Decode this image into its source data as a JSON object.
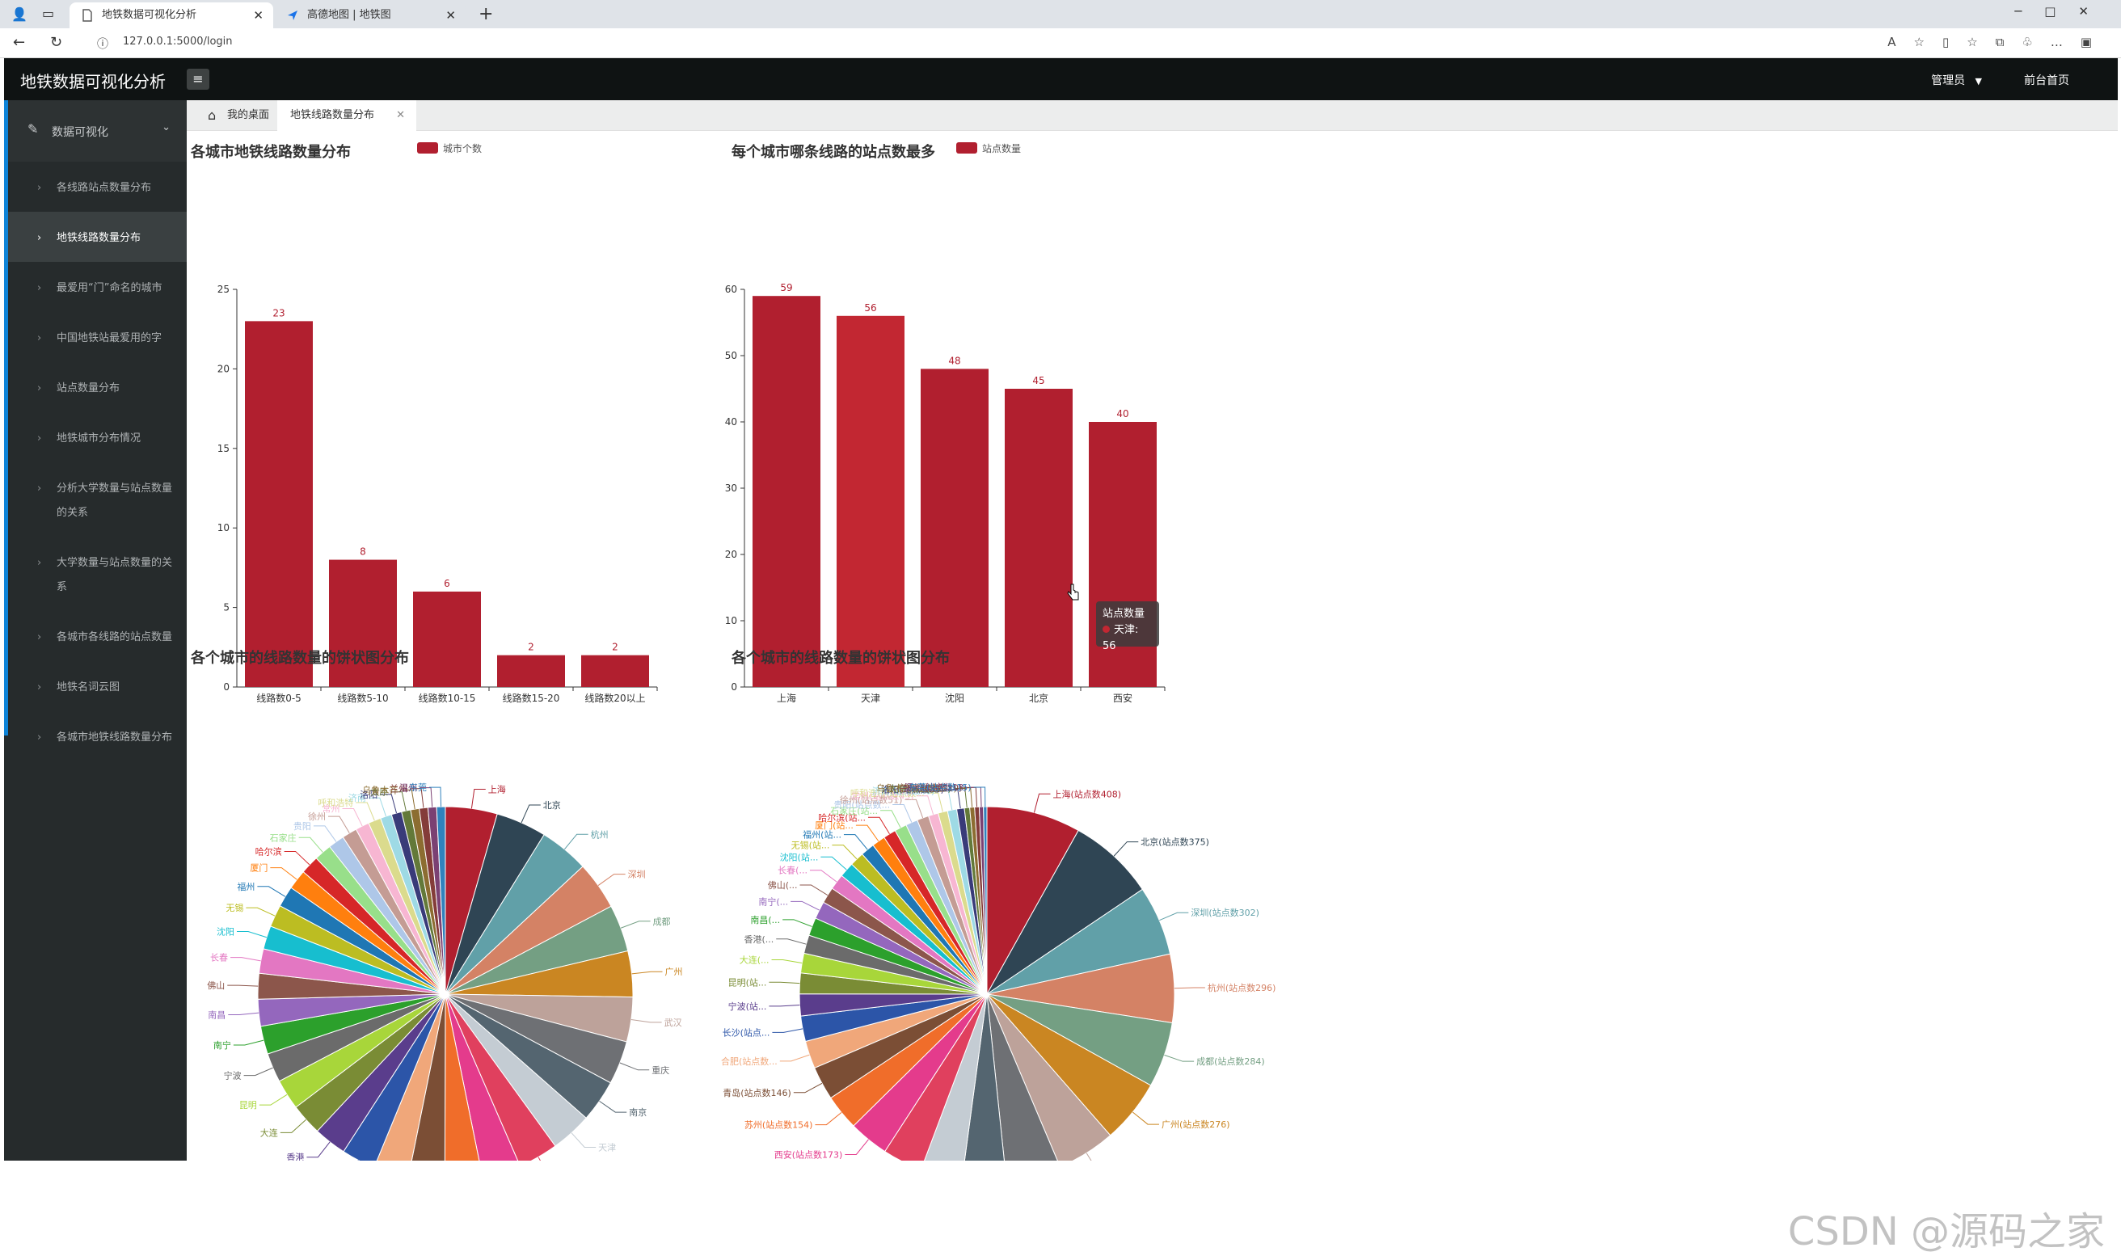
{
  "browser": {
    "tabs": [
      {
        "title": "地铁数据可视化分析"
      },
      {
        "title": "高德地图 | 地铁图"
      }
    ],
    "url": "127.0.0.1:5000/login"
  },
  "app": {
    "title": "地铁数据可视化分析",
    "admin_label": "管理员",
    "frontpage_label": "前台首页"
  },
  "sidebar": {
    "section_label": "数据可视化",
    "items": [
      {
        "label": "各线路站点数量分布"
      },
      {
        "label": "地铁线路数量分布"
      },
      {
        "label": "最爱用“门”命名的城市"
      },
      {
        "label": "中国地铁站最爱用的字"
      },
      {
        "label": "站点数量分布"
      },
      {
        "label": "地铁城市分布情况"
      },
      {
        "label": "分析大学数量与站点数量的关系"
      },
      {
        "label": "大学数量与站点数量的关系"
      },
      {
        "label": "各城市各线路的站点数量"
      },
      {
        "label": "地铁名词云图"
      },
      {
        "label": "各城市地铁线路数量分布"
      }
    ]
  },
  "page_tabs": {
    "home": "我的桌面",
    "current": "地铁线路数量分布"
  },
  "tooltip": {
    "title": "站点数量",
    "value": "天津: 56"
  },
  "watermark": "CSDN @源码之家",
  "chart_data": [
    {
      "type": "bar",
      "title": "各城市地铁线路数量分布",
      "legend": "城市个数",
      "categories": [
        "线路数0-5",
        "线路数5-10",
        "线路数10-15",
        "线路数15-20",
        "线路数20以上"
      ],
      "values": [
        23,
        8,
        6,
        2,
        2
      ],
      "ylim": [
        0,
        25
      ],
      "yticks": [
        0,
        5,
        10,
        15,
        20,
        25
      ],
      "color": "#b11f2f"
    },
    {
      "type": "bar",
      "title": "每个城市哪条线路的站点数最多",
      "legend": "站点数量",
      "categories": [
        "上海",
        "天津",
        "沈阳",
        "北京",
        "西安"
      ],
      "values": [
        59,
        56,
        48,
        45,
        40
      ],
      "ylim": [
        0,
        60
      ],
      "yticks": [
        0,
        10,
        20,
        30,
        40,
        50,
        60
      ],
      "color": "#b11f2f",
      "highlight_color": "#c22732",
      "highlighted": "天津"
    },
    {
      "type": "pie",
      "title": "各个城市的线路数量的饼状图分布",
      "labels": [
        "上海",
        "北京",
        "杭州",
        "深圳",
        "成都",
        "广州",
        "武汉",
        "重庆",
        "南京",
        "天津",
        "郑州",
        "西安",
        "苏州",
        "青岛",
        "长沙",
        "合肥",
        "香港",
        "大连",
        "昆明",
        "宁波",
        "南宁",
        "南昌",
        "佛山",
        "长春",
        "沈阳",
        "无锡",
        "福州",
        "厦门",
        "哈尔滨",
        "石家庄",
        "贵阳",
        "徐州",
        "常州",
        "呼和浩特",
        "济南",
        "洛阳",
        "太原",
        "乌鲁木齐",
        "兰州",
        "温州",
        "东莞"
      ]
    },
    {
      "type": "pie",
      "title": "各个城市的线路数量的饼状图分布",
      "labels": [
        "上海(站点数408)",
        "北京(站点数375)",
        "深圳(站点数302)",
        "杭州(站点数296)",
        "成都(站点数284)",
        "广州(站点数276)",
        "武汉(站点数254)",
        "重庆(站点数238)",
        "南京(站点数190)",
        "天津(站点数181)",
        "郑州(站点数173)",
        "西安(站点数173)",
        "苏州(站点数154)",
        "青岛(站点数146)",
        "合肥(站点数...",
        "长沙(站点...",
        "宁波(站...",
        "昆明(站...",
        "大连(...",
        "香港(...",
        "南昌(...",
        "南宁(...",
        "佛山(...",
        "长春(...",
        "沈阳(站...",
        "无锡(站...",
        "福州(站...",
        "厦门(站...",
        "哈尔滨(站...",
        "石家庄(站...",
        "贵阳(站点数...",
        "徐州(站点数51)",
        "常州(站点数43)",
        "呼和浩特(站点数...",
        "济南(站点数40)",
        "洛阳(站点数33)",
        "太原(站点数23)",
        "乌鲁木齐(站点数21)",
        "兰州(站点数20)",
        "温州(站点数18)",
        "东莞(站点数15)"
      ],
      "values": [
        408,
        375,
        302,
        296,
        284,
        276,
        254,
        238,
        190,
        181,
        173,
        173,
        154,
        146,
        120,
        110,
        95,
        90,
        85,
        80,
        78,
        76,
        70,
        68,
        65,
        62,
        60,
        58,
        55,
        53,
        52,
        51,
        43,
        41,
        40,
        33,
        23,
        21,
        20,
        18,
        15
      ]
    }
  ],
  "palette": [
    "#b11f2f",
    "#2f4554",
    "#61a0a8",
    "#d48265",
    "#749f83",
    "#ca8622",
    "#bda29a",
    "#6e7074",
    "#546570",
    "#c4ccd3",
    "#e0405e",
    "#e43b8c",
    "#f06d2a",
    "#7b4e35",
    "#f0a77a",
    "#2c55a8",
    "#5a3d8c",
    "#7a8c35",
    "#a8d63a",
    "#6b6b6b",
    "#2ca02c",
    "#9467bd",
    "#8c564b",
    "#e377c2",
    "#17becf",
    "#bcbd22",
    "#1f77b4",
    "#ff7f0e",
    "#d62728",
    "#98df8a",
    "#aec7e8",
    "#c49c94",
    "#f7b6d2",
    "#dbdb8d",
    "#9edae5",
    "#393b79",
    "#637939",
    "#8c6d31",
    "#843c39",
    "#7b4173",
    "#3182bd"
  ]
}
